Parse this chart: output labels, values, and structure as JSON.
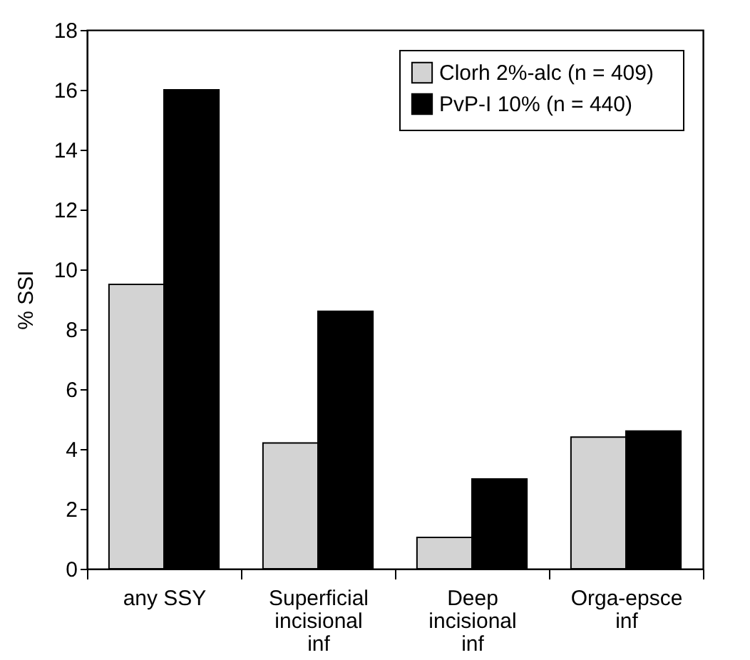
{
  "chart_data": {
    "type": "bar",
    "ylabel": "% SSI",
    "categories": [
      "any SSY",
      "Superficial\nincisional\ninf",
      "Deep\nincisional\ninf",
      "Orga-epsce\ninf"
    ],
    "series": [
      {
        "name": "Clorh    2%-alc (n = 409)",
        "color": "#d3d3d3",
        "values": [
          9.5,
          4.2,
          1.05,
          4.4
        ]
      },
      {
        "name": "PvP-I 10% (n = 440)",
        "color": "#000000",
        "values": [
          16.0,
          8.6,
          3.0,
          4.6
        ]
      }
    ],
    "ylim": [
      0,
      18
    ],
    "yticks": [
      0,
      2,
      4,
      6,
      8,
      10,
      12,
      14,
      16,
      18
    ],
    "grid": false,
    "legend": "top right"
  }
}
